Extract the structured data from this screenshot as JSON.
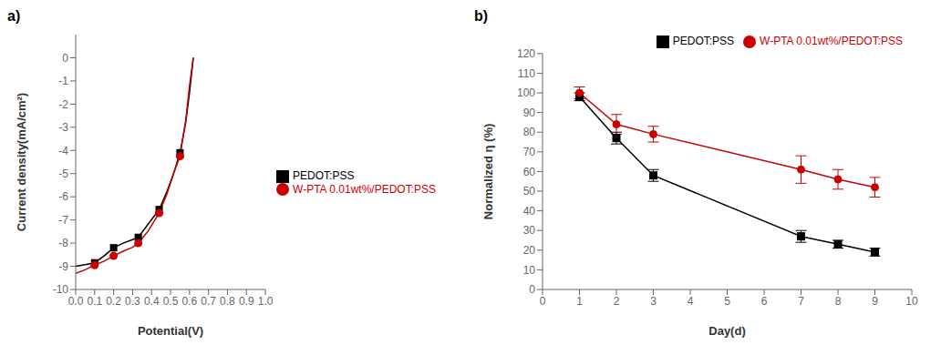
{
  "chart_data": [
    {
      "type": "line",
      "title": "a)",
      "xlabel": "Potential(V)",
      "ylabel": "Current density(mA/cm²)",
      "xlim": [
        0.0,
        1.0
      ],
      "ylim": [
        -10,
        1
      ],
      "xticks": [
        {
          "value": 0.0,
          "label": "0.0"
        },
        0.1,
        0.2,
        0.3,
        0.4,
        0.5,
        0.6,
        0.7,
        0.8,
        0.9,
        {
          "value": 1.0,
          "label": "1.0"
        }
      ],
      "yticks": [
        0,
        -1,
        -2,
        -3,
        -4,
        -5,
        -6,
        -7,
        -8,
        -9,
        -10
      ],
      "grid": false,
      "legend": "right",
      "series": [
        {
          "type": "line",
          "color": "#000000",
          "x": [
            0.0,
            0.05,
            0.1,
            0.15,
            0.2,
            0.25,
            0.3,
            0.33,
            0.38,
            0.44,
            0.48,
            0.52,
            0.55,
            0.58,
            0.6,
            0.62
          ],
          "values": [
            -9.0,
            -8.93,
            -8.85,
            -8.55,
            -8.2,
            -8.0,
            -7.85,
            -7.75,
            -7.2,
            -6.55,
            -5.8,
            -4.9,
            -4.1,
            -2.8,
            -1.5,
            0.0
          ]
        },
        {
          "type": "line",
          "color": "#cc0000",
          "x": [
            0.0,
            0.05,
            0.1,
            0.15,
            0.2,
            0.25,
            0.3,
            0.33,
            0.38,
            0.44,
            0.48,
            0.52,
            0.55,
            0.58,
            0.6,
            0.62
          ],
          "values": [
            -9.3,
            -9.15,
            -8.95,
            -8.78,
            -8.55,
            -8.35,
            -8.18,
            -8.0,
            -7.5,
            -6.7,
            -5.9,
            -4.9,
            -4.25,
            -2.7,
            -1.2,
            0.0
          ]
        },
        {
          "type": "scatter",
          "name": "PEDOT:PSS",
          "color": "#000000",
          "marker": "square",
          "x": [
            0.1,
            0.2,
            0.33,
            0.44,
            0.55
          ],
          "values": [
            -8.85,
            -8.2,
            -7.75,
            -6.55,
            -4.1
          ]
        },
        {
          "type": "scatter",
          "name": "W-PTA 0.01wt%/PEDOT:PSS",
          "color": "#cc0000",
          "marker": "circle",
          "x": [
            0.1,
            0.2,
            0.33,
            0.44,
            0.55
          ],
          "values": [
            -8.95,
            -8.55,
            -8.0,
            -6.7,
            -4.25
          ]
        }
      ]
    },
    {
      "type": "line",
      "title": "b)",
      "xlabel": "Day(d)",
      "ylabel": "Normalized η (%)",
      "xlim": [
        0,
        10
      ],
      "ylim": [
        0,
        120
      ],
      "xticks": [
        0,
        1,
        2,
        3,
        4,
        5,
        6,
        7,
        8,
        9,
        10
      ],
      "yticks": [
        0,
        10,
        20,
        30,
        40,
        50,
        60,
        70,
        80,
        90,
        100,
        110,
        120
      ],
      "grid": false,
      "legend": "upper right",
      "series": [
        {
          "name": "PEDOT:PSS",
          "color": "#000000",
          "marker": "square",
          "x": [
            1,
            2,
            3,
            7,
            8,
            9
          ],
          "values": [
            98,
            77,
            58,
            27,
            23,
            19
          ],
          "errors": [
            2,
            3,
            3,
            3,
            2,
            2
          ]
        },
        {
          "name": "W-PTA 0.01wt%/PEDOT:PSS",
          "color": "#cc0000",
          "marker": "circle",
          "x": [
            1,
            2,
            3,
            7,
            8,
            9
          ],
          "values": [
            100,
            84,
            79,
            61,
            56,
            52
          ],
          "errors": [
            3,
            5,
            4,
            7,
            5,
            5
          ]
        }
      ]
    }
  ]
}
